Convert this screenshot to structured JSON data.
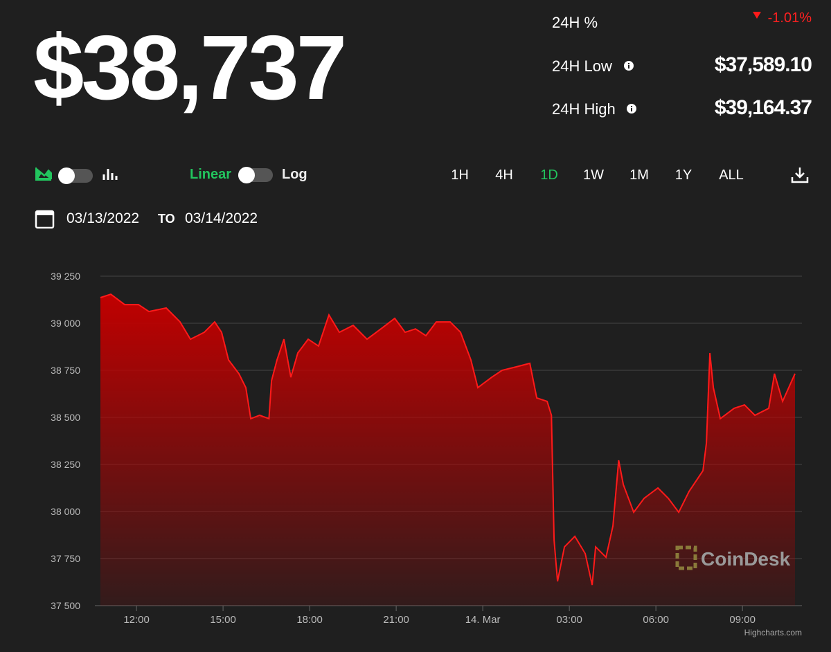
{
  "header": {
    "price": "$38,737",
    "stats": [
      {
        "label": "24H %",
        "value": "-1.01%"
      },
      {
        "label": "24H Low",
        "value": "$37,589.10"
      },
      {
        "label": "24H High",
        "value": "$39,164.37"
      }
    ]
  },
  "controls": {
    "scale_left": "Linear",
    "scale_right": "Log",
    "ranges": [
      "1H",
      "4H",
      "1D",
      "1W",
      "1M",
      "1Y",
      "ALL"
    ],
    "active_range": "1D",
    "date_from": "03/13/2022",
    "date_sep": "TO",
    "date_to": "03/14/2022"
  },
  "chart_data": {
    "type": "area",
    "color": "#ff1a1a",
    "grid": true,
    "watermark": "CoinDesk",
    "credit": "Highcharts.com",
    "x": [
      10.75,
      11.11,
      11.59,
      12.07,
      12.43,
      13.03,
      13.51,
      13.87,
      14.35,
      14.71,
      14.95,
      15.19,
      15.55,
      15.79,
      15.96,
      16.27,
      16.59,
      16.68,
      16.87,
      17.11,
      17.35,
      17.59,
      17.95,
      18.31,
      18.67,
      19.03,
      19.51,
      19.99,
      20.47,
      20.95,
      21.31,
      21.67,
      22.03,
      22.39,
      22.87,
      23.23,
      23.59,
      23.83,
      24.31,
      24.67,
      25.15,
      25.63,
      25.87,
      26.23,
      26.38,
      26.47,
      26.59,
      26.83,
      27.19,
      27.55,
      27.79,
      27.91,
      28.27,
      28.51,
      28.71,
      28.87,
      29.23,
      29.59,
      30.07,
      30.43,
      30.79,
      31.15,
      31.63,
      31.75,
      31.87,
      31.99,
      32.23,
      32.71,
      33.07,
      33.43,
      33.91,
      34.11,
      34.39,
      34.82
    ],
    "values": [
      39136,
      39154,
      39099,
      39099,
      39062,
      39081,
      39007,
      38915,
      38952,
      39007,
      38952,
      38805,
      38732,
      38658,
      38493,
      38511,
      38493,
      38695,
      38805,
      38915,
      38713,
      38842,
      38915,
      38879,
      39044,
      38952,
      38989,
      38915,
      38970,
      39026,
      38952,
      38970,
      38934,
      39007,
      39007,
      38952,
      38805,
      38658,
      38713,
      38750,
      38768,
      38787,
      38603,
      38585,
      38511,
      37849,
      37629,
      37812,
      37868,
      37776,
      37610,
      37812,
      37757,
      37923,
      38272,
      38143,
      37996,
      38070,
      38125,
      38070,
      37996,
      38107,
      38217,
      38364,
      38842,
      38658,
      38493,
      38548,
      38566,
      38511,
      38548,
      38732,
      38585,
      38732
    ],
    "xlim": [
      10.75,
      35.06
    ],
    "xticks": [
      {
        "value": 12,
        "label": "12:00"
      },
      {
        "value": 15,
        "label": "15:00"
      },
      {
        "value": 18,
        "label": "18:00"
      },
      {
        "value": 21,
        "label": "21:00"
      },
      {
        "value": 24,
        "label": "14. Mar"
      },
      {
        "value": 27,
        "label": "03:00"
      },
      {
        "value": 30,
        "label": "06:00"
      },
      {
        "value": 33,
        "label": "09:00"
      }
    ],
    "ylim": [
      37500,
      39250
    ],
    "yticks": [
      {
        "value": 37500,
        "label": "37 500"
      },
      {
        "value": 37750,
        "label": "37 750"
      },
      {
        "value": 38000,
        "label": "38 000"
      },
      {
        "value": 38250,
        "label": "38 250"
      },
      {
        "value": 38500,
        "label": "38 500"
      },
      {
        "value": 38750,
        "label": "38 750"
      },
      {
        "value": 39000,
        "label": "39 000"
      },
      {
        "value": 39250,
        "label": "39 250"
      }
    ]
  }
}
